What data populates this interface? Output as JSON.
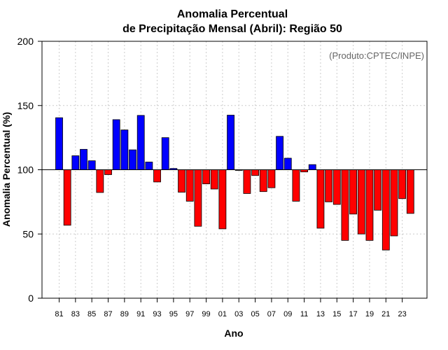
{
  "chart_data": {
    "type": "bar",
    "title": "Anomalia Percentual",
    "subtitle": "de Precipitação Mensal (Abril): Região 50",
    "xlabel": "Ano",
    "ylabel": "Anomalia Percentual (%)",
    "annotation": "(Produto:CPTEC/INPE)",
    "baseline": 100,
    "ylim": [
      0,
      200
    ],
    "yticks": [
      0,
      50,
      100,
      150,
      200
    ],
    "grid": true,
    "categories": [
      "81",
      "82",
      "83",
      "84",
      "85",
      "86",
      "87",
      "88",
      "89",
      "90",
      "91",
      "92",
      "93",
      "94",
      "95",
      "96",
      "97",
      "98",
      "99",
      "00",
      "01",
      "02",
      "03",
      "04",
      "05",
      "06",
      "07",
      "08",
      "09",
      "10",
      "11",
      "12",
      "13",
      "14",
      "15",
      "16",
      "17",
      "18",
      "19",
      "20",
      "21",
      "22",
      "23",
      "24"
    ],
    "xtick_labels": [
      "81",
      "83",
      "85",
      "87",
      "89",
      "91",
      "93",
      "95",
      "97",
      "99",
      "01",
      "03",
      "05",
      "07",
      "09",
      "11",
      "13",
      "15",
      "17",
      "19",
      "21",
      "23"
    ],
    "values": [
      140.5,
      56.8,
      110.9,
      115.9,
      107,
      82.3,
      96.2,
      139,
      131,
      115.5,
      142.3,
      106,
      90.5,
      125,
      101,
      82.5,
      75.5,
      56,
      89,
      85,
      54,
      142.5,
      99.5,
      81.5,
      95.5,
      83,
      86,
      126,
      109,
      75.5,
      98.3,
      104,
      54.5,
      75,
      73,
      45,
      65.5,
      50,
      45,
      68.5,
      37.5,
      48.5,
      77.5,
      66
    ],
    "colors": {
      "above": "#0000ff",
      "below": "#ff0000",
      "bar_edge": "#000000",
      "grid": "#cccccc",
      "baseline": "#000000"
    }
  }
}
